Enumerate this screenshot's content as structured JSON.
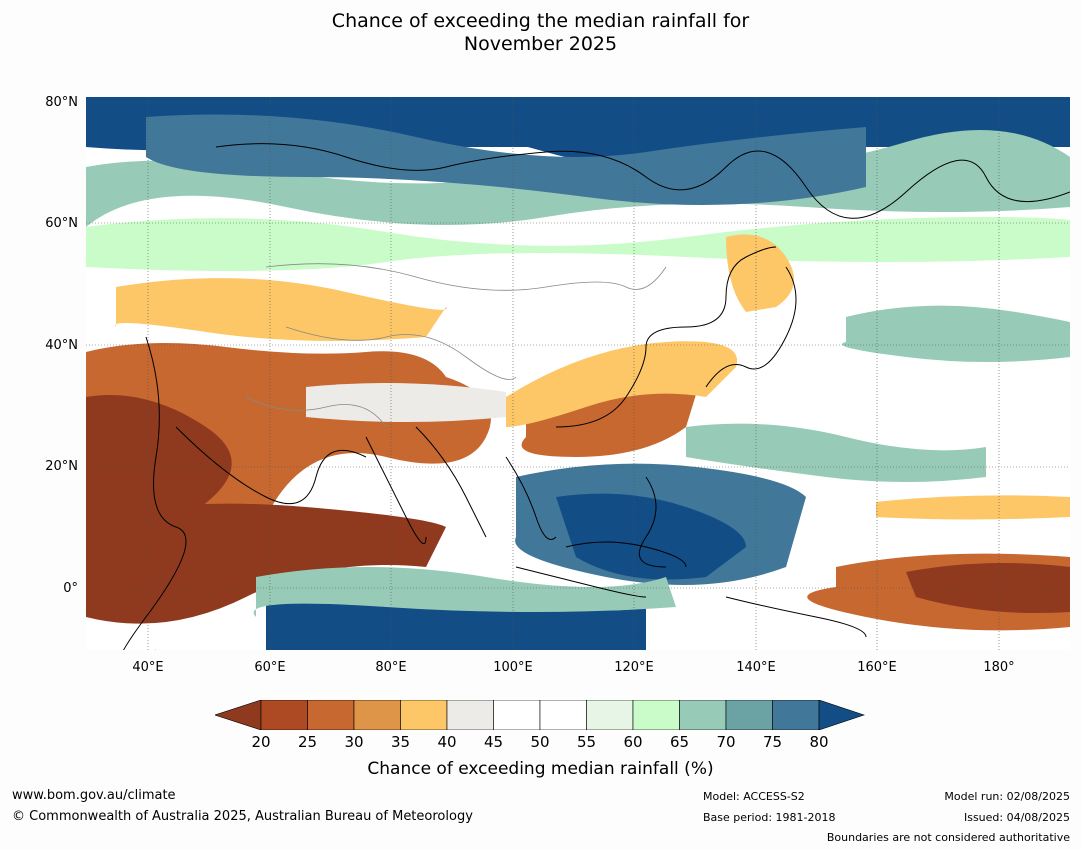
{
  "title": {
    "line1": "Chance of exceeding the median rainfall for",
    "line2": "November 2025"
  },
  "map": {
    "lat_labels": [
      "80°N",
      "60°N",
      "40°N",
      "20°N",
      "0°"
    ],
    "lon_labels": [
      "40°E",
      "60°E",
      "80°E",
      "100°E",
      "120°E",
      "140°E",
      "160°E",
      "180°"
    ]
  },
  "colorbar": {
    "label": "Chance of exceeding median rainfall (%)",
    "ticks": [
      "20",
      "25",
      "30",
      "35",
      "40",
      "45",
      "50",
      "55",
      "60",
      "65",
      "70",
      "75",
      "80"
    ],
    "colors": [
      "#8f3a1e",
      "#ad4a24",
      "#c66830",
      "#df9548",
      "#fdc767",
      "#ecebe7",
      "#ffffff",
      "#ffffff",
      "#e6f5e6",
      "#c9fcc9",
      "#97cbb7",
      "#6ba3a4",
      "#41789a",
      "#124d86"
    ]
  },
  "footer": {
    "url": "www.bom.gov.au/climate",
    "copyright": "© Commonwealth of Australia 2025, Australian Bureau of Meteorology",
    "model": "Model: ACCESS-S2",
    "base_period": "Base period: 1981-2018",
    "model_run": "Model run: 02/08/2025",
    "issued": "Issued: 04/08/2025",
    "disclaimer": "Boundaries are not considered authoritative"
  }
}
